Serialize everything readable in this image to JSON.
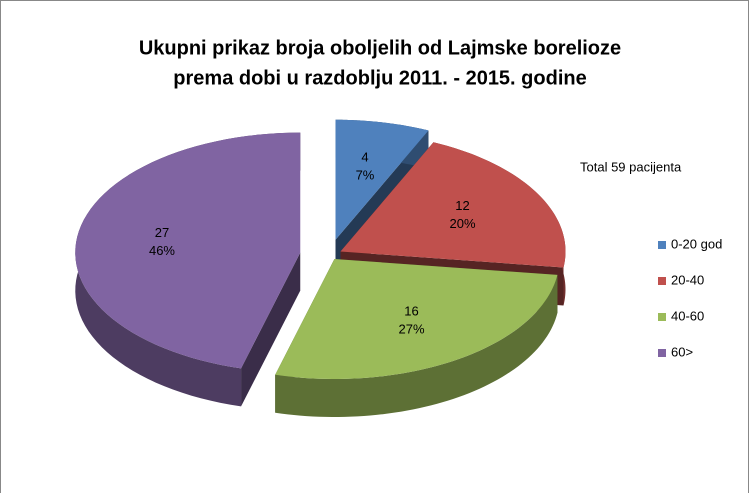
{
  "chart_data": {
    "type": "pie3d",
    "title_lines": [
      "Ukupni prikaz broja oboljelih od Lajmske borelioze",
      "prema dobi u razdoblju 2011. - 2015. godine"
    ],
    "annotation": "Total 59 pacijenta",
    "categories": [
      "0-20 god",
      "20-40",
      "40-60",
      "60>"
    ],
    "values": [
      4,
      12,
      16,
      27
    ],
    "percent_labels": [
      "7%",
      "20%",
      "27%",
      "46%"
    ],
    "colors": [
      "#4f81bd",
      "#c0504d",
      "#9bbb59",
      "#8064a2"
    ],
    "legend": "right"
  }
}
